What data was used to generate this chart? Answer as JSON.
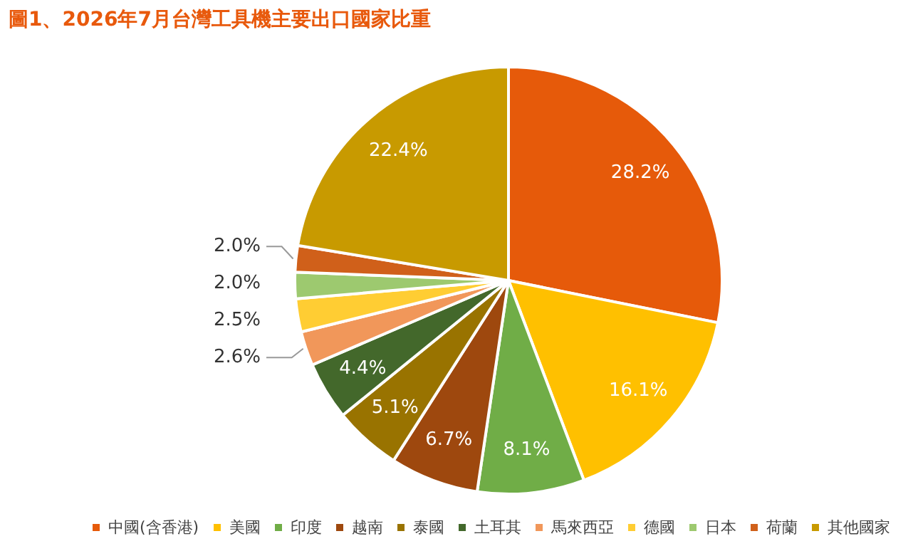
{
  "chart_data": {
    "type": "pie",
    "title": "圖1、2026年7月台灣工具機主要出口國家比重",
    "categories": [
      "中國(含香港)",
      "美國",
      "印度",
      "越南",
      "泰國",
      "土耳其",
      "馬來西亞",
      "德國",
      "日本",
      "荷蘭",
      "其他國家"
    ],
    "values": [
      28.2,
      16.1,
      8.1,
      6.7,
      5.1,
      4.4,
      2.6,
      2.5,
      2.0,
      2.0,
      22.4
    ],
    "colors": [
      "#e65a0a",
      "#ffc000",
      "#70ad47",
      "#9e480e",
      "#997300",
      "#43682b",
      "#f1975a",
      "#ffcd33",
      "#9dc96f",
      "#d0601a",
      "#c89a00"
    ],
    "value_labels": [
      "28.2%",
      "16.1%",
      "8.1%",
      "6.7%",
      "5.1%",
      "4.4%",
      "2.6%",
      "2.5%",
      "2.0%",
      "2.0%",
      "22.4%"
    ],
    "legend": "bottom"
  }
}
